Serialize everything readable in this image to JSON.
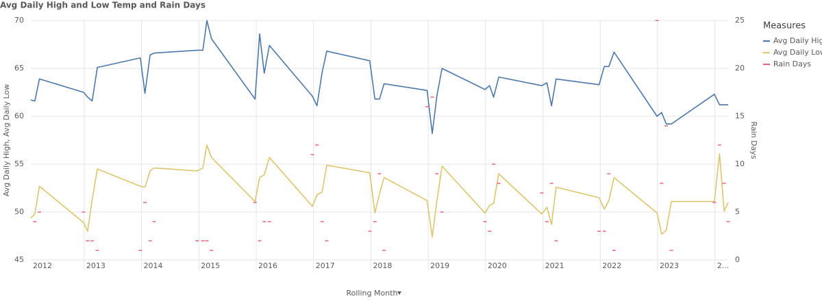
{
  "chart_data": {
    "type": "line",
    "title": "Avg Daily High and Low Temp and Rain Days",
    "ylabel": "Avg Daily High, Avg Daily Low",
    "y2label": "Rain Days",
    "xlabel": "Rolling Month",
    "legend_title": "Measures",
    "legend": "right",
    "grid": true,
    "x": [
      2012.07,
      2012.14,
      2012.22,
      2012.99,
      2013.06,
      2013.14,
      2013.23,
      2013.98,
      2014.06,
      2014.15,
      2014.22,
      2014.97,
      2015.07,
      2015.14,
      2015.22,
      2015.98,
      2016.06,
      2016.14,
      2016.23,
      2016.98,
      2017.06,
      2017.15,
      2017.23,
      2017.98,
      2018.07,
      2018.15,
      2018.23,
      2018.98,
      2019.07,
      2019.15,
      2019.24,
      2019.99,
      2020.07,
      2020.14,
      2020.23,
      2020.98,
      2021.07,
      2021.15,
      2021.23,
      2021.98,
      2022.07,
      2022.15,
      2022.24,
      2022.99,
      2023.07,
      2023.15,
      2023.24,
      2023.99,
      2024.08,
      2024.16,
      2024.23
    ],
    "xlim": [
      2012.07,
      2024.23
    ],
    "xticks": [
      2012,
      2013,
      2014,
      2015,
      2016,
      2017,
      2018,
      2019,
      2020,
      2021,
      2022,
      2023,
      {
        "value": 2024,
        "label": "2..."
      }
    ],
    "ylim": [
      45,
      70
    ],
    "yticks": [
      45,
      50,
      55,
      60,
      65,
      70
    ],
    "y2lim": [
      0,
      25
    ],
    "y2ticks": [
      0,
      5,
      10,
      15,
      20,
      25
    ],
    "series": [
      {
        "name": "Avg Daily High",
        "color": "#4a77a8",
        "style": "line",
        "values": [
          61.7,
          61.6,
          63.9,
          62.5,
          62.0,
          61.6,
          65.1,
          66.1,
          62.4,
          66.4,
          66.6,
          66.9,
          66.9,
          70.0,
          68.1,
          61.8,
          68.6,
          64.5,
          67.4,
          62.1,
          61.1,
          64.6,
          66.8,
          65.8,
          61.8,
          61.8,
          63.4,
          62.7,
          58.2,
          62.1,
          65.0,
          62.8,
          63.2,
          62.0,
          64.1,
          63.2,
          63.5,
          61.1,
          63.9,
          63.3,
          65.2,
          65.2,
          66.7,
          60.0,
          60.4,
          59.2,
          59.2,
          62.3,
          61.2,
          61.2,
          61.2
        ]
      },
      {
        "name": "Avg Daily Low",
        "color": "#dcc56c",
        "style": "line",
        "values": [
          49.4,
          49.8,
          52.7,
          48.9,
          48.0,
          51.3,
          54.5,
          52.7,
          52.6,
          54.3,
          54.6,
          54.3,
          54.6,
          57.0,
          55.7,
          51.1,
          53.6,
          53.9,
          55.7,
          50.6,
          51.8,
          52.1,
          54.9,
          54.1,
          49.9,
          51.9,
          53.6,
          51.2,
          47.4,
          51.1,
          54.8,
          49.9,
          50.7,
          50.9,
          54.0,
          49.8,
          50.5,
          48.7,
          52.6,
          51.5,
          50.3,
          51.2,
          53.6,
          49.9,
          47.7,
          48.1,
          51.1,
          51.1,
          56.1,
          50.1,
          51.0
        ]
      },
      {
        "name": "Rain Days",
        "color": "#e8637d",
        "style": "dash",
        "axis": "y2",
        "values": [
          null,
          4,
          5,
          5,
          2,
          2,
          1,
          1,
          6,
          2,
          4,
          2,
          2,
          2,
          1,
          6,
          2,
          4,
          4,
          11,
          12,
          4,
          2,
          3,
          4,
          9,
          1,
          16,
          17,
          9,
          5,
          4,
          3,
          10,
          8,
          7,
          4,
          8,
          2,
          3,
          3,
          9,
          1,
          25,
          8,
          14,
          1,
          6,
          12,
          8,
          4
        ]
      }
    ]
  }
}
